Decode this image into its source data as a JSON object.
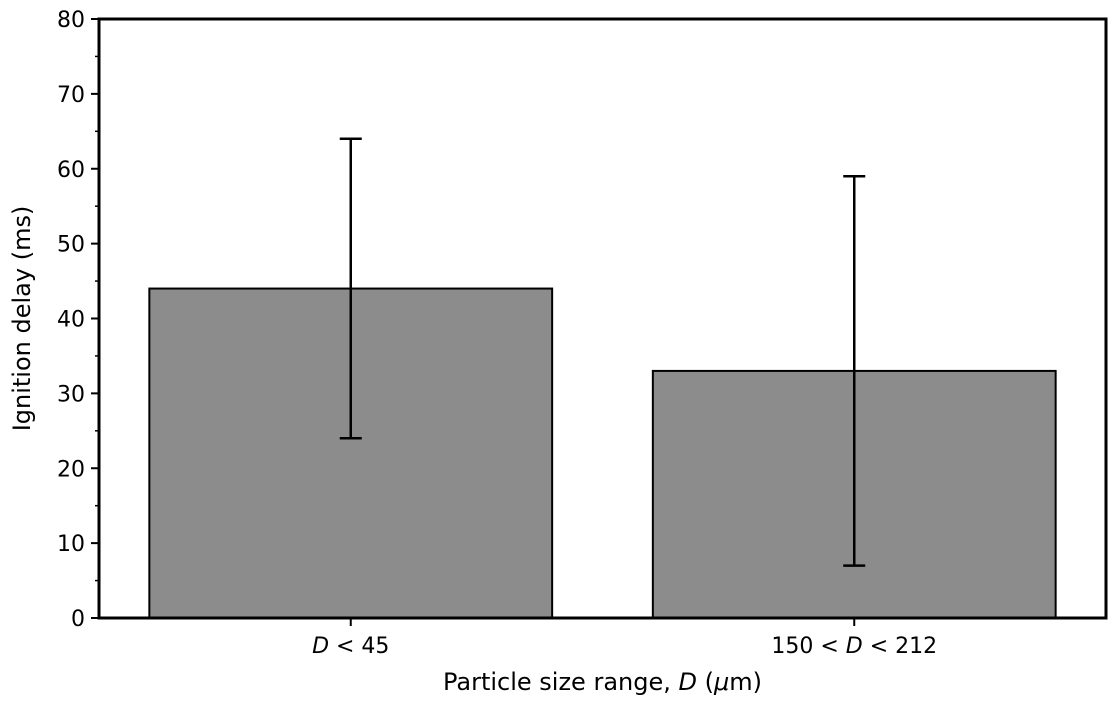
{
  "chart_data": {
    "type": "bar",
    "categories": [
      "D < 45",
      "150 < D < 212"
    ],
    "category_labels": [
      [
        {
          "text": "D",
          "italic": true
        },
        {
          "text": " < 45",
          "italic": false
        }
      ],
      [
        {
          "text": "150 < ",
          "italic": false
        },
        {
          "text": "D",
          "italic": true
        },
        {
          "text": " < 212",
          "italic": false
        }
      ]
    ],
    "values": [
      44,
      33
    ],
    "error_low": [
      24,
      7
    ],
    "error_high": [
      64,
      59
    ],
    "xlabel_parts": [
      {
        "text": "Particle size range, ",
        "italic": false
      },
      {
        "text": "D",
        "italic": true
      },
      {
        "text": " (",
        "italic": false
      },
      {
        "text": "μ",
        "italic": true
      },
      {
        "text": "m)",
        "italic": false
      }
    ],
    "ylabel": "Ignition delay (ms)",
    "ylim": [
      0,
      80
    ],
    "yticks": [
      0,
      10,
      20,
      30,
      40,
      50,
      60,
      70,
      80
    ],
    "yminor_step": 5,
    "grid": false,
    "legend": "none",
    "bar_color": "#8c8c8c",
    "edge_color": "#000000"
  }
}
